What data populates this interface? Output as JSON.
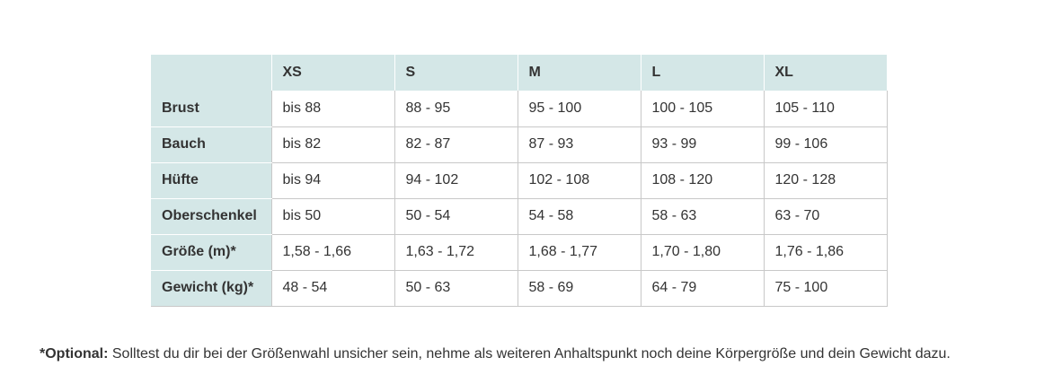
{
  "table": {
    "header": {
      "corner": "",
      "sizes": [
        "XS",
        "S",
        "M",
        "L",
        "XL"
      ]
    },
    "rows": [
      {
        "label": "Brust",
        "values": [
          "bis 88",
          "88 - 95",
          "95 - 100",
          "100 - 105",
          "105 - 110"
        ]
      },
      {
        "label": "Bauch",
        "values": [
          "bis 82",
          "82 - 87",
          "87 - 93",
          "93 - 99",
          "99 - 106"
        ]
      },
      {
        "label": "Hüfte",
        "values": [
          "bis 94",
          "94 - 102",
          "102 - 108",
          "108 - 120",
          "120 - 128"
        ]
      },
      {
        "label": "Oberschenkel",
        "values": [
          "bis 50",
          "50 - 54",
          "54 - 58",
          "58 - 63",
          "63 - 70"
        ]
      },
      {
        "label": "Größe (m)*",
        "values": [
          "1,58 - 1,66",
          "1,63 - 1,72",
          "1,68 - 1,77",
          "1,70 - 1,80",
          "1,76 - 1,86"
        ]
      },
      {
        "label": "Gewicht (kg)*",
        "values": [
          "48 - 54",
          "50 - 63",
          "58 - 69",
          "64 - 79",
          "75 - 100"
        ]
      }
    ]
  },
  "footnote": {
    "label": "*Optional:",
    "text": " Solltest du dir bei der Größenwahl unsicher sein, nehme als weiteren Anhaltspunkt noch deine Körpergröße und dein Gewicht dazu."
  },
  "colors": {
    "header_bg": "#d4e7e7",
    "text": "#333333",
    "border": "#c8c8c8"
  }
}
